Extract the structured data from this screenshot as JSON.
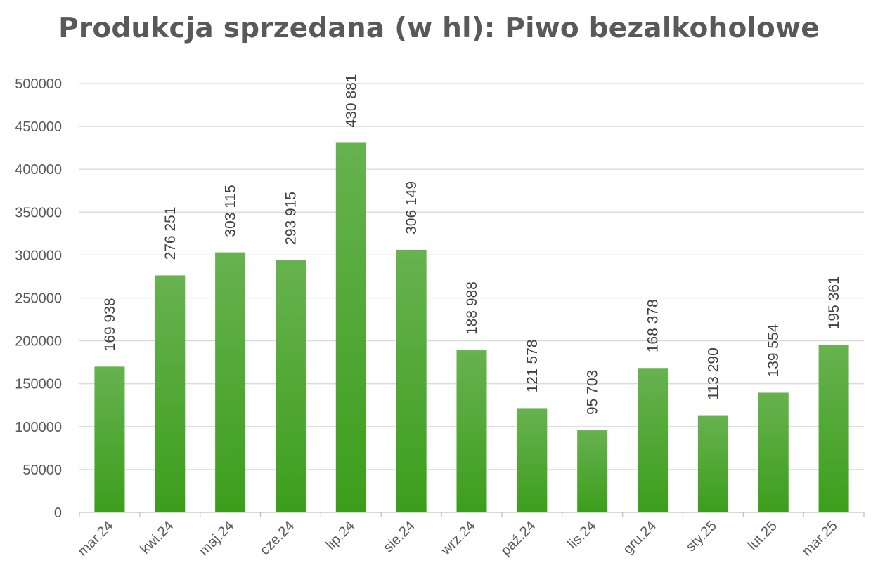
{
  "chart_data": {
    "type": "bar",
    "title": "Produkcja sprzedana (w hl): Piwo bezalkoholowe",
    "xlabel": "",
    "ylabel": "",
    "categories": [
      "mar.24",
      "kwi.24",
      "maj.24",
      "cze.24",
      "lip.24",
      "sie.24",
      "wrz.24",
      "paź.24",
      "lis.24",
      "gru.24",
      "sty.25",
      "lut.25",
      "mar.25"
    ],
    "values": [
      169938,
      276251,
      303115,
      293915,
      430881,
      306149,
      188988,
      121578,
      95703,
      168378,
      113290,
      139554,
      195361
    ],
    "data_labels": [
      "169 938",
      "276 251",
      "303 115",
      "293 915",
      "430 881",
      "306 149",
      "188 988",
      "121 578",
      "95 703",
      "168 378",
      "113 290",
      "139 554",
      "195 361"
    ],
    "y_ticks": [
      "0",
      "50000",
      "100000",
      "150000",
      "200000",
      "250000",
      "300000",
      "350000",
      "400000",
      "450000",
      "500000"
    ],
    "ylim": [
      0,
      500000
    ],
    "grid": true,
    "legend": "none",
    "colors": {
      "bar_top": "#67b24f",
      "bar_bottom": "#3c9e1c",
      "grid": "#d9d9d9",
      "axis": "#bfbfbf",
      "text": "#595959"
    }
  }
}
